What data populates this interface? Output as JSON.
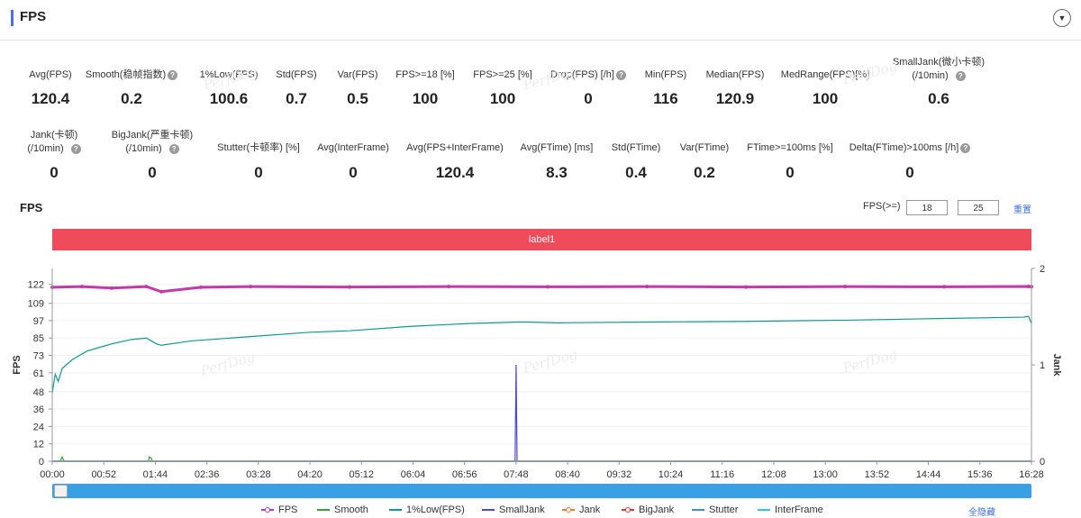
{
  "header": {
    "title": "FPS",
    "collapse_icon": "chevron-down-icon"
  },
  "metrics_row1": [
    {
      "label": "Avg(FPS)",
      "value": "120.4",
      "help": false
    },
    {
      "label": "Smooth(稳帧指数)",
      "value": "0.2",
      "help": true
    },
    {
      "label": "1%Low(FPS)",
      "value": "100.6",
      "help": false
    },
    {
      "label": "Std(FPS)",
      "value": "0.7",
      "help": false
    },
    {
      "label": "Var(FPS)",
      "value": "0.5",
      "help": false
    },
    {
      "label": "FPS>=18 [%]",
      "value": "100",
      "help": false
    },
    {
      "label": "FPS>=25 [%]",
      "value": "100",
      "help": false
    },
    {
      "label": "Drop(FPS) [/h]",
      "value": "0",
      "help": true
    },
    {
      "label": "Min(FPS)",
      "value": "116",
      "help": false
    },
    {
      "label": "Median(FPS)",
      "value": "120.9",
      "help": false
    },
    {
      "label": "MedRange(FPS)[%]",
      "value": "100",
      "help": false
    },
    {
      "label": "SmallJank(微小卡顿)",
      "label2": "(/10min)",
      "value": "0.6",
      "help": true
    }
  ],
  "metrics_row2": [
    {
      "label": "Jank(卡顿)",
      "label2": "(/10min)",
      "value": "0",
      "help": true
    },
    {
      "label": "BigJank(严重卡顿)",
      "label2": "(/10min)",
      "value": "0",
      "help": true
    },
    {
      "label": "Stutter(卡顿率) [%]",
      "value": "0",
      "help": false
    },
    {
      "label": "Avg(InterFrame)",
      "value": "0",
      "help": false
    },
    {
      "label": "Avg(FPS+InterFrame)",
      "value": "120.4",
      "help": false
    },
    {
      "label": "Avg(FTime) [ms]",
      "value": "8.3",
      "help": false
    },
    {
      "label": "Std(FTime)",
      "value": "0.4",
      "help": false
    },
    {
      "label": "Var(FTime)",
      "value": "0.2",
      "help": false
    },
    {
      "label": "FTime>=100ms [%]",
      "value": "0",
      "help": false
    },
    {
      "label": "Delta(FTime)>100ms [/h]",
      "value": "0",
      "help": true
    }
  ],
  "chart_header": {
    "title": "FPS",
    "threshold_label": "FPS(>=)",
    "threshold_1": "18",
    "threshold_2": "25",
    "reset_label": "重置"
  },
  "label_band": "label1",
  "watermark": "PerfDog",
  "colors": {
    "FPS": "#c23aa9",
    "Smooth": "#3aa13a",
    "1%Low(FPS)": "#129a8c",
    "SmallJank": "#4a46e0",
    "Jank": "#ef7a2e",
    "BigJank": "#e03333",
    "Stutter": "#3a8de0",
    "InterFrame": "#35c4e0",
    "label_band": "#ef4b5b",
    "scrollbar": "#3aa0e6"
  },
  "legend": [
    "FPS",
    "Smooth",
    "1%Low(FPS)",
    "SmallJank",
    "Jank",
    "BigJank",
    "Stutter",
    "InterFrame"
  ],
  "hide_all_label": "全隐藏",
  "chart_data": {
    "type": "line",
    "ylabel_left": "FPS",
    "ylabel_right": "Jank",
    "y_ticks_left": [
      0,
      12,
      24,
      36,
      48,
      61,
      73,
      85,
      97,
      109,
      122
    ],
    "y_ticks_right": [
      0,
      1,
      2
    ],
    "ylim_left": [
      0,
      133
    ],
    "ylim_right": [
      0,
      2
    ],
    "x_ticks": [
      "00:00",
      "00:52",
      "01:44",
      "02:36",
      "03:28",
      "04:20",
      "05:12",
      "06:04",
      "06:56",
      "07:48",
      "08:40",
      "09:32",
      "10:24",
      "11:16",
      "12:08",
      "13:00",
      "13:52",
      "14:44",
      "15:36",
      "16:28"
    ],
    "x_range_seconds": [
      0,
      988
    ],
    "series": [
      {
        "name": "FPS",
        "axis": "left",
        "x": [
          0,
          30,
          60,
          95,
          110,
          150,
          200,
          300,
          400,
          500,
          600,
          700,
          800,
          900,
          985,
          988
        ],
        "values": [
          120,
          120.5,
          119.5,
          120.5,
          117,
          120,
          120.5,
          120.2,
          120.5,
          120.3,
          120.5,
          120.2,
          120.5,
          120.3,
          120.6,
          120.4
        ]
      },
      {
        "name": "1%Low(FPS)",
        "axis": "left",
        "x": [
          0,
          3,
          6,
          10,
          20,
          35,
          50,
          60,
          80,
          95,
          100,
          105,
          110,
          140,
          200,
          260,
          300,
          360,
          420,
          470,
          480,
          510,
          600,
          700,
          800,
          900,
          980,
          985,
          988
        ],
        "values": [
          47,
          60,
          55,
          64,
          70,
          76,
          79,
          81,
          84,
          85,
          83,
          81,
          80,
          83,
          86,
          89,
          90,
          93,
          95,
          96,
          96,
          95.5,
          96,
          96.5,
          97.3,
          98.5,
          99.4,
          100,
          95
        ]
      },
      {
        "name": "Smooth",
        "axis": "left",
        "x": [
          0,
          8,
          10,
          12,
          97,
          98,
          100,
          101,
          160,
          360,
          420,
          570,
          988
        ],
        "values": [
          0,
          0,
          3,
          0,
          0,
          3,
          2,
          0,
          0,
          0,
          0,
          0,
          0
        ]
      },
      {
        "name": "SmallJank",
        "axis": "right",
        "x": [
          0,
          467,
          468,
          469,
          988
        ],
        "values": [
          0,
          0,
          1,
          0,
          0
        ]
      },
      {
        "name": "Jank",
        "axis": "right",
        "x": [
          0,
          988
        ],
        "values": [
          0,
          0
        ]
      },
      {
        "name": "BigJank",
        "axis": "right",
        "x": [
          0,
          988
        ],
        "values": [
          0,
          0
        ]
      },
      {
        "name": "Stutter",
        "axis": "right",
        "x": [
          0,
          988
        ],
        "values": [
          0,
          0
        ]
      },
      {
        "name": "InterFrame",
        "axis": "left",
        "x": [
          0,
          988
        ],
        "values": [
          0,
          0
        ]
      }
    ]
  }
}
